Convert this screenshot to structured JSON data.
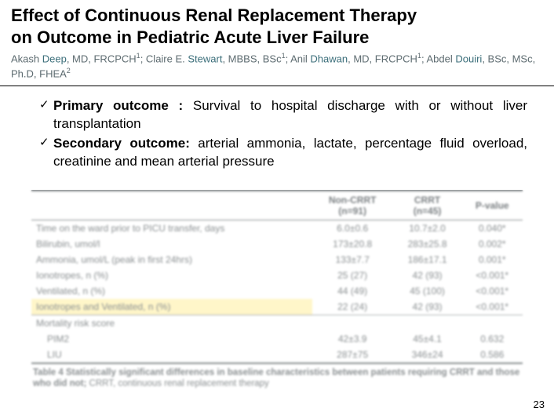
{
  "title": {
    "line1": "Effect of Continuous Renal Replacement Therapy",
    "line2": "on Outcome in Pediatric Acute Liver Failure"
  },
  "authors_html": "Akash <span class='name'>Deep</span>, MD, FRCPCH<span class='sup'>1</span>; Claire E. <span class='name'>Stewart</span>, MBBS, BSc<span class='sup'>1</span>; Anil <span class='name'>Dhawan</span>, MD, FRCPCH<span class='sup'>1</span>; Abdel <span class='name'>Douiri</span>, BSc, MSc, Ph.D, FHEA<span class='sup'>2</span>",
  "bullets": [
    {
      "label": "Primary outcome : ",
      "text": "Survival to hospital discharge with or without liver transplantation"
    },
    {
      "label": "Secondary outcome: ",
      "text": "arterial ammonia, lactate, percentage fluid overload, creatinine and mean arterial pressure"
    }
  ],
  "table": {
    "headers": [
      "",
      "Non-CRRT\n(n=91)",
      "CRRT\n(n=45)",
      "P-value"
    ],
    "rows": [
      [
        "Time on the ward prior to PICU transfer, days",
        "6.0±0.6",
        "10.7±2.0",
        "0.040*"
      ],
      [
        "Bilirubin, umol/l",
        "173±20.8",
        "283±25.8",
        "0.002*"
      ],
      [
        "Ammonia, umol/L (peak in first 24hrs)",
        "133±7.7",
        "186±17.1",
        "0.001*"
      ],
      [
        "Ionotropes, n (%)",
        "25 (27)",
        "42 (93)",
        "<0.001*"
      ],
      [
        "Ventilated, n (%)",
        "44 (49)",
        "45 (100)",
        "<0.001*"
      ],
      [
        "Ionotropes and Ventilated, n (%)",
        "22 (24)",
        "42 (93)",
        "<0.001*"
      ]
    ],
    "score_label": "Mortality risk score",
    "score_rows": [
      [
        "PIM2",
        "42±3.9",
        "45±4.1",
        "0.632"
      ],
      [
        "LIU",
        "287±75",
        "346±24",
        "0.586"
      ]
    ],
    "highlight_row_index": 5,
    "caption_bold": "Table 4 Statistically significant differences in baseline characteristics between patients requiring CRRT and those who did not;",
    "caption_rest": " CRRT, continuous renal replacement therapy"
  },
  "page_number": "23"
}
